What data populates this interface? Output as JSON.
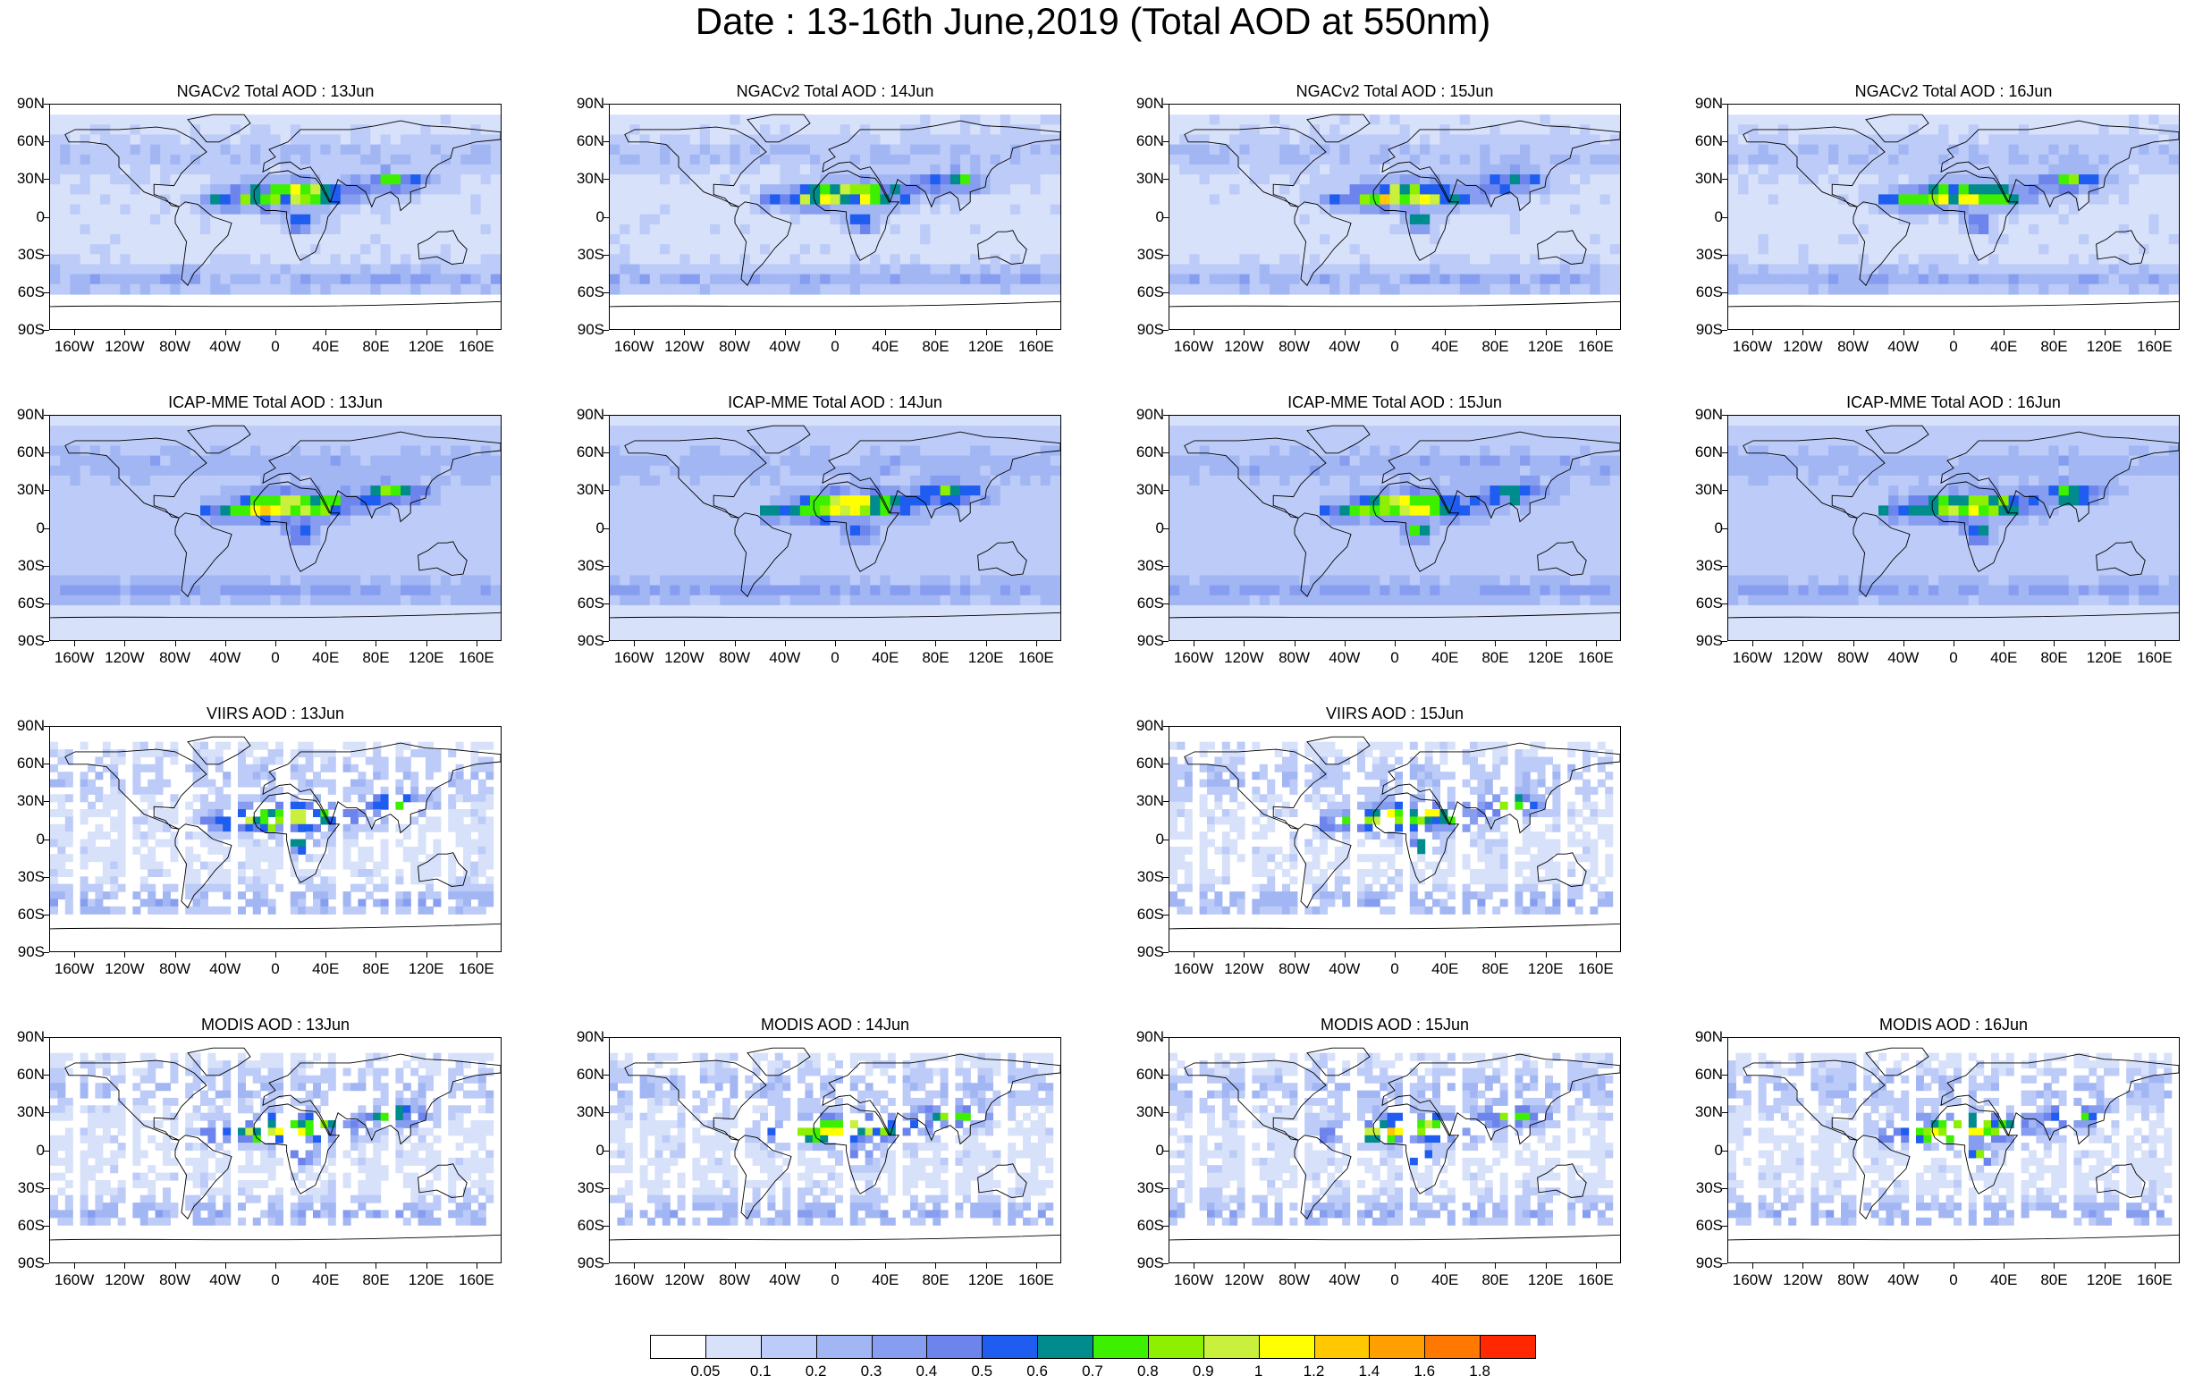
{
  "title": "Date : 13-16th June,2019 (Total AOD at 550nm)",
  "y_tick_labels": [
    "90N",
    "60N",
    "30N",
    "0",
    "30S",
    "60S",
    "90S"
  ],
  "x_tick_labels": [
    "160W",
    "120W",
    "80W",
    "40W",
    "0",
    "40E",
    "80E",
    "120E",
    "160E"
  ],
  "panels": [
    {
      "title": "NGACv2 Total AOD : 13Jun",
      "product": "NGACv2",
      "row": 0,
      "col": 0
    },
    {
      "title": "NGACv2 Total AOD : 14Jun",
      "product": "NGACv2",
      "row": 0,
      "col": 1
    },
    {
      "title": "NGACv2 Total AOD : 15Jun",
      "product": "NGACv2",
      "row": 0,
      "col": 2
    },
    {
      "title": "NGACv2 Total AOD : 16Jun",
      "product": "NGACv2",
      "row": 0,
      "col": 3
    },
    {
      "title": "ICAP-MME Total AOD : 13Jun",
      "product": "ICAP",
      "row": 1,
      "col": 0
    },
    {
      "title": "ICAP-MME Total AOD : 14Jun",
      "product": "ICAP",
      "row": 1,
      "col": 1
    },
    {
      "title": "ICAP-MME Total AOD : 15Jun",
      "product": "ICAP",
      "row": 1,
      "col": 2
    },
    {
      "title": "ICAP-MME Total AOD : 16Jun",
      "product": "ICAP",
      "row": 1,
      "col": 3
    },
    {
      "title": "VIIRS AOD : 13Jun",
      "product": "VIIRS",
      "row": 2,
      "col": 0
    },
    {
      "title": "VIIRS AOD : 15Jun",
      "product": "VIIRS",
      "row": 2,
      "col": 2
    },
    {
      "title": "MODIS AOD : 13Jun",
      "product": "MODIS",
      "row": 3,
      "col": 0
    },
    {
      "title": "MODIS AOD : 14Jun",
      "product": "MODIS",
      "row": 3,
      "col": 1
    },
    {
      "title": "MODIS AOD : 15Jun",
      "product": "MODIS",
      "row": 3,
      "col": 2
    },
    {
      "title": "MODIS AOD : 16Jun",
      "product": "MODIS",
      "row": 3,
      "col": 3
    }
  ],
  "colorbar": {
    "labels": [
      "0.05",
      "0.1",
      "0.2",
      "0.3",
      "0.4",
      "0.5",
      "0.6",
      "0.7",
      "0.8",
      "0.9",
      "1",
      "1.2",
      "1.4",
      "1.6",
      "1.8"
    ],
    "colors": [
      "#ffffff",
      "#d7e1fa",
      "#bccbf7",
      "#a2b6f4",
      "#879ef0",
      "#6c84ec",
      "#1f5cf0",
      "#008c8c",
      "#3cf000",
      "#8cf000",
      "#c8f03c",
      "#ffff00",
      "#ffc800",
      "#ffa000",
      "#ff7800",
      "#ff2800"
    ]
  },
  "colors": {
    "coastline": "#000000",
    "low_aod": "#d7e1fa",
    "mid_aod": "#879ef0",
    "high_aod": "#3cf000"
  }
}
